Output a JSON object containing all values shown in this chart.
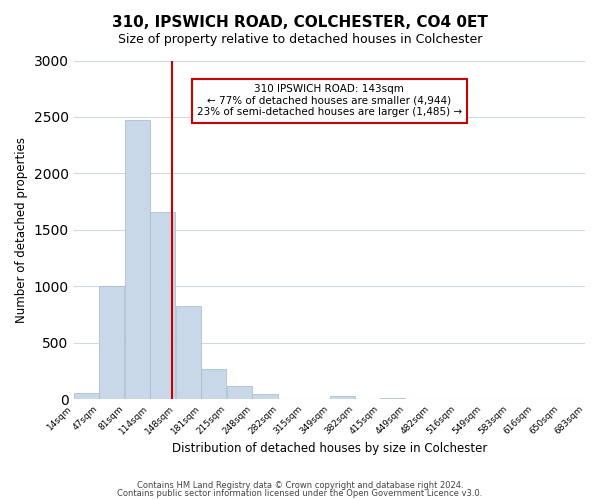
{
  "title": "310, IPSWICH ROAD, COLCHESTER, CO4 0ET",
  "subtitle": "Size of property relative to detached houses in Colchester",
  "xlabel": "Distribution of detached houses by size in Colchester",
  "ylabel": "Number of detached properties",
  "footer_lines": [
    "Contains HM Land Registry data © Crown copyright and database right 2024.",
    "Contains public sector information licensed under the Open Government Licence v3.0."
  ],
  "bar_edges": [
    14,
    47,
    81,
    114,
    148,
    181,
    215,
    248,
    282,
    315,
    349,
    382,
    415,
    449,
    482,
    516,
    549,
    583,
    616,
    650,
    683
  ],
  "bar_heights": [
    55,
    1000,
    2470,
    1660,
    830,
    270,
    120,
    50,
    0,
    0,
    35,
    0,
    15,
    0,
    0,
    0,
    0,
    0,
    0,
    0
  ],
  "bar_color": "#c8d8e8",
  "bar_edgecolor": "#a0b8cc",
  "vline_x": 143,
  "vline_color": "#cc0000",
  "annotation_title": "310 IPSWICH ROAD: 143sqm",
  "annotation_line1": "← 77% of detached houses are smaller (4,944)",
  "annotation_line2": "23% of semi-detached houses are larger (1,485) →",
  "annotation_box_edgecolor": "#cc0000",
  "annotation_box_facecolor": "#ffffff",
  "ylim": [
    0,
    3000
  ],
  "yticks": [
    0,
    500,
    1000,
    1500,
    2000,
    2500,
    3000
  ],
  "tick_labels": [
    "14sqm",
    "47sqm",
    "81sqm",
    "114sqm",
    "148sqm",
    "181sqm",
    "215sqm",
    "248sqm",
    "282sqm",
    "315sqm",
    "349sqm",
    "382sqm",
    "415sqm",
    "449sqm",
    "482sqm",
    "516sqm",
    "549sqm",
    "583sqm",
    "616sqm",
    "650sqm",
    "683sqm"
  ],
  "background_color": "#ffffff",
  "grid_color": "#d0d8e0"
}
